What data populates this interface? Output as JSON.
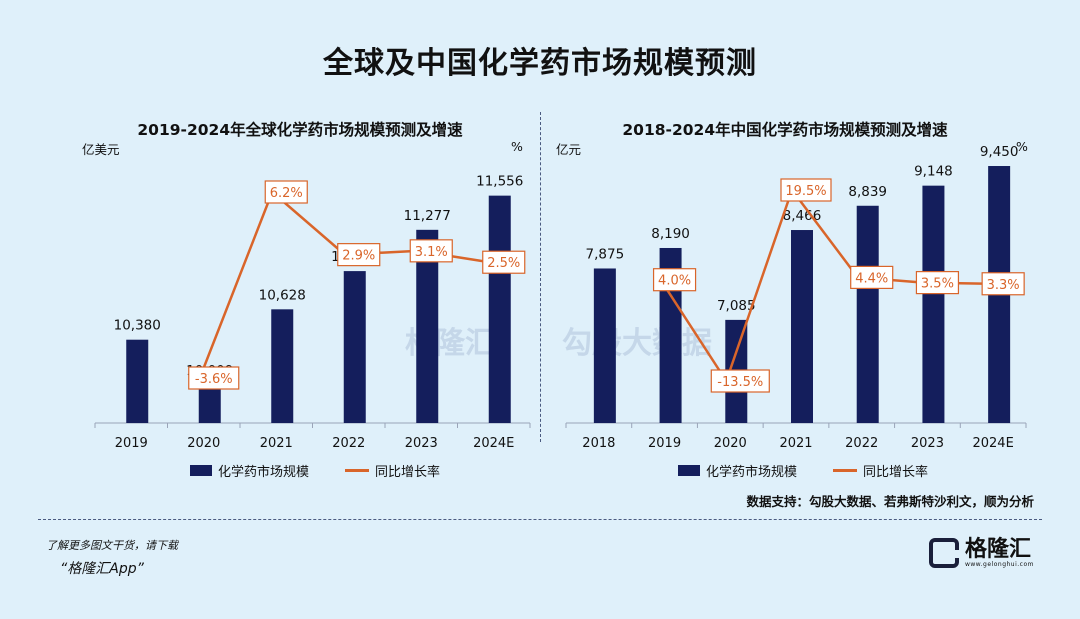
{
  "title": "全球及中国化学药市场规模预测",
  "charts": {
    "left": {
      "title": "2019-2024年全球化学药市场规模预测及增速",
      "left_unit": "亿美元",
      "right_unit": "%"
    },
    "right": {
      "title": "2018-2024年中国化学药市场规模预测及增速",
      "left_unit": "亿元",
      "right_unit": "%"
    }
  },
  "legend": {
    "bar_label": "化学药市场规模",
    "line_label": "同比增长率"
  },
  "source": "数据支持：勾股大数据、若弗斯特沙利文，顺为分析",
  "watermark": {
    "brand1": "格隆汇",
    "brand2": "勾股大数据"
  },
  "footer": {
    "note": "了解更多图文干货，请下载",
    "app": "“格隆汇App”",
    "brand": "格隆汇",
    "brand_url": "www.gelonghui.com"
  },
  "colors": {
    "bar": "#141e5c",
    "line": "#d9652a",
    "background": "#dff0fa"
  },
  "chart_data": [
    {
      "type": "bar",
      "title": "2019-2024年全球化学药市场规模预测及增速",
      "categories": [
        "2019",
        "2020",
        "2021",
        "2022",
        "2023",
        "2024E"
      ],
      "series": [
        {
          "name": "化学药市场规模",
          "type": "bar",
          "values": [
            10380,
            10009,
            10628,
            10940,
            11277,
            11556
          ],
          "labels": [
            "10,380",
            "10,009",
            "10,628",
            "10,940",
            "11,277",
            "11,556"
          ]
        },
        {
          "name": "同比增长率",
          "type": "line",
          "values": [
            null,
            -3.6,
            6.2,
            2.9,
            3.1,
            2.5
          ],
          "labels": [
            "",
            "-3.6%",
            "6.2%",
            "2.9%",
            "3.1%",
            "2.5%"
          ]
        }
      ],
      "ylabel": "亿美元",
      "y2label": "%",
      "legend_position": "bottom"
    },
    {
      "type": "bar",
      "title": "2018-2024年中国化学药市场规模预测及增速",
      "categories": [
        "2018",
        "2019",
        "2020",
        "2021",
        "2022",
        "2023",
        "2024E"
      ],
      "series": [
        {
          "name": "化学药市场规模",
          "type": "bar",
          "values": [
            7875,
            8190,
            7085,
            8466,
            8839,
            9148,
            9450
          ],
          "labels": [
            "7,875",
            "8,190",
            "7,085",
            "8,466",
            "8,839",
            "9,148",
            "9,450"
          ]
        },
        {
          "name": "同比增长率",
          "type": "line",
          "values": [
            null,
            4.0,
            -13.5,
            19.5,
            4.4,
            3.5,
            3.3
          ],
          "labels": [
            "",
            "4.0%",
            "-13.5%",
            "19.5%",
            "4.4%",
            "3.5%",
            "3.3%"
          ]
        }
      ],
      "ylabel": "亿元",
      "y2label": "%",
      "legend_position": "bottom"
    }
  ]
}
